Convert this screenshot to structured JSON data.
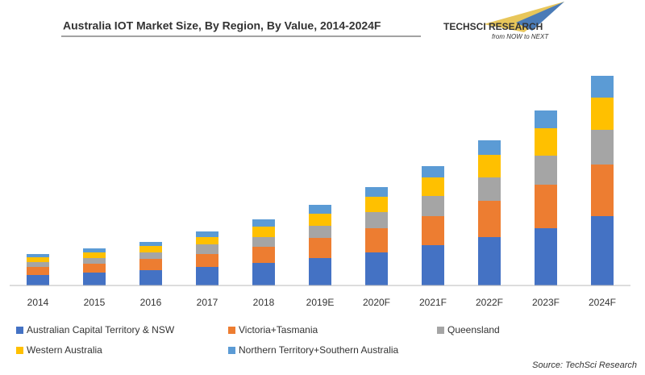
{
  "chart_data": {
    "type": "stacked_bar",
    "title": "Australia IOT Market Size, By Region, By Value, 2014-2024F",
    "source": "Source: TechSci Research",
    "categories": [
      "2014",
      "2015",
      "2016",
      "2017",
      "2018",
      "2019E",
      "2020F",
      "2021F",
      "2022F",
      "2023F",
      "2024F"
    ],
    "series": [
      {
        "name": "Australian Capital Territory & NSW",
        "color": "#4472c4",
        "values": [
          13,
          16,
          19,
          23,
          28,
          34,
          41,
          50,
          60,
          71,
          86
        ]
      },
      {
        "name": "Victoria+Tasmania",
        "color": "#ed7d31",
        "values": [
          10,
          11,
          14,
          16,
          20,
          25,
          30,
          36,
          45,
          54,
          64
        ]
      },
      {
        "name": "Queensland",
        "color": "#a5a5a5",
        "values": [
          6,
          7,
          8,
          12,
          12,
          15,
          20,
          25,
          29,
          36,
          43
        ]
      },
      {
        "name": "Western Australia",
        "color": "#ffc000",
        "values": [
          6,
          7,
          8,
          9,
          13,
          15,
          19,
          23,
          28,
          34,
          40
        ]
      },
      {
        "name": "Northern Territory+Southern Australia",
        "color": "#5b9bd5",
        "values": [
          4,
          5,
          5,
          7,
          9,
          11,
          12,
          14,
          18,
          22,
          27
        ]
      }
    ],
    "ylim": [
      0,
      270
    ]
  },
  "logo": {
    "name": "TECHSCI RESEARCH",
    "tagline": "from NOW to NEXT"
  }
}
